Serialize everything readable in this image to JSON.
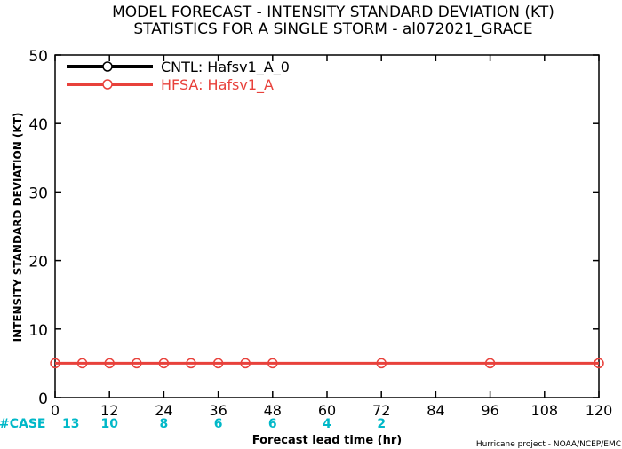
{
  "chart_data": {
    "type": "line",
    "title": "MODEL FORECAST - INTENSITY STANDARD DEVIATION (KT)",
    "subtitle": "STATISTICS FOR A SINGLE STORM - al072021_GRACE",
    "xlabel": "Forecast lead time (hr)",
    "ylabel": "INTENSITY STANDARD DEVIATION (KT)",
    "xlim": [
      0,
      120
    ],
    "ylim": [
      0,
      50
    ],
    "x_ticks": [
      "0",
      "12",
      "24",
      "36",
      "48",
      "60",
      "72",
      "84",
      "96",
      "108",
      "120"
    ],
    "y_ticks": [
      "0",
      "10",
      "20",
      "30",
      "40",
      "50"
    ],
    "grid": false,
    "legend_position": "top-left",
    "series": [
      {
        "name": "CNTL: Hafsv1_A_0",
        "color": "#000000",
        "x": [],
        "y": []
      },
      {
        "name": "HFSA: Hafsv1_A",
        "color": "#e8413b",
        "x": [
          0,
          6,
          12,
          18,
          24,
          30,
          36,
          42,
          48,
          72,
          96,
          120
        ],
        "y": [
          5,
          5,
          5,
          5,
          5,
          5,
          5,
          5,
          5,
          5,
          5,
          5
        ]
      }
    ],
    "case_counts": {
      "label": "#CASE",
      "color": "#00b8c8",
      "x": [
        0,
        12,
        24,
        36,
        48,
        60,
        72
      ],
      "values": [
        "13",
        "10",
        "8",
        "6",
        "6",
        "4",
        "2"
      ]
    },
    "footer": "Hurricane project - NOAA/NCEP/EMC"
  }
}
